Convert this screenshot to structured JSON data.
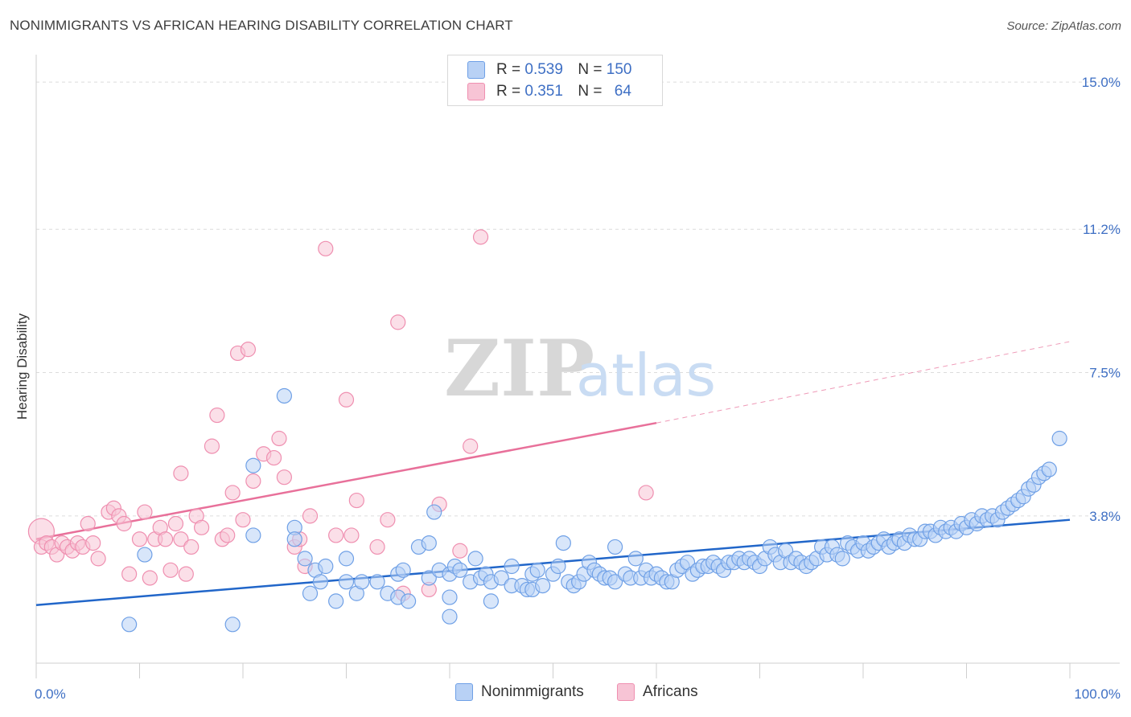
{
  "title": "NONIMMIGRANTS VS AFRICAN HEARING DISABILITY CORRELATION CHART",
  "source": "Source: ZipAtlas.com",
  "watermark": {
    "zip": "ZIP",
    "atlas": "atlas"
  },
  "colors": {
    "blue": "#6fa0e6",
    "blue_fill": "#b8d1f5",
    "blue_line": "#2166c9",
    "pink": "#ef8fb0",
    "pink_fill": "#f7c4d5",
    "pink_line": "#e8709a"
  },
  "legend": {
    "rows": [
      {
        "r_label": "R =",
        "r_value": "0.539",
        "n_label": "N =",
        "n_value": "150"
      },
      {
        "r_label": "R =",
        "r_value": "0.351",
        "n_label": "N =",
        "n_value": "64"
      }
    ]
  },
  "bottom_legend": {
    "nonimmigrants": "Nonimmigrants",
    "africans": "Africans"
  },
  "chart_data": {
    "type": "scatter",
    "xlabel": "",
    "ylabel": "Hearing Disability",
    "xlim": [
      0,
      100
    ],
    "ylim": [
      0,
      15.5
    ],
    "x_tick_labels": [
      "0.0%",
      "100.0%"
    ],
    "y_ticks": [
      3.8,
      7.5,
      11.2,
      15.0
    ],
    "y_tick_labels": [
      "3.8%",
      "7.5%",
      "11.2%",
      "15.0%"
    ],
    "grid": true,
    "legend_placement": "top-center",
    "series": [
      {
        "name": "Nonimmigrants",
        "trend": {
          "x0": 0,
          "y0": 1.5,
          "x1": 100,
          "y1": 3.7
        },
        "points": [
          [
            9,
            1.0
          ],
          [
            10.5,
            2.8
          ],
          [
            19,
            1.0
          ],
          [
            21,
            3.3
          ],
          [
            21,
            5.1
          ],
          [
            24,
            6.9
          ],
          [
            25,
            3.5
          ],
          [
            25,
            3.2
          ],
          [
            26,
            2.7
          ],
          [
            26.5,
            1.8
          ],
          [
            27,
            2.4
          ],
          [
            27.5,
            2.1
          ],
          [
            28,
            2.5
          ],
          [
            29,
            1.6
          ],
          [
            30,
            2.1
          ],
          [
            30,
            2.7
          ],
          [
            31,
            1.8
          ],
          [
            31.5,
            2.1
          ],
          [
            33,
            2.1
          ],
          [
            34,
            1.8
          ],
          [
            35,
            1.7
          ],
          [
            35,
            2.3
          ],
          [
            35.5,
            2.4
          ],
          [
            36,
            1.6
          ],
          [
            37,
            3.0
          ],
          [
            38,
            2.2
          ],
          [
            38,
            3.1
          ],
          [
            38.5,
            3.9
          ],
          [
            39,
            2.4
          ],
          [
            40,
            2.3
          ],
          [
            40,
            1.7
          ],
          [
            40,
            1.2
          ],
          [
            40.5,
            2.5
          ],
          [
            41,
            2.4
          ],
          [
            42,
            2.1
          ],
          [
            42.5,
            2.7
          ],
          [
            43,
            2.2
          ],
          [
            43.5,
            2.3
          ],
          [
            44,
            2.1
          ],
          [
            44,
            1.6
          ],
          [
            45,
            2.2
          ],
          [
            46,
            2.0
          ],
          [
            46,
            2.5
          ],
          [
            47,
            2.0
          ],
          [
            47.5,
            1.9
          ],
          [
            48,
            2.3
          ],
          [
            48,
            1.9
          ],
          [
            48.5,
            2.4
          ],
          [
            49,
            2.0
          ],
          [
            50,
            2.3
          ],
          [
            50.5,
            2.5
          ],
          [
            51,
            3.1
          ],
          [
            51.5,
            2.1
          ],
          [
            52,
            2.0
          ],
          [
            52.5,
            2.1
          ],
          [
            53,
            2.3
          ],
          [
            53.5,
            2.6
          ],
          [
            54,
            2.4
          ],
          [
            54.5,
            2.3
          ],
          [
            55,
            2.2
          ],
          [
            55.5,
            2.2
          ],
          [
            56,
            2.1
          ],
          [
            56,
            3.0
          ],
          [
            57,
            2.3
          ],
          [
            57.5,
            2.2
          ],
          [
            58,
            2.7
          ],
          [
            58.5,
            2.2
          ],
          [
            59,
            2.4
          ],
          [
            59.5,
            2.2
          ],
          [
            60,
            2.3
          ],
          [
            60.5,
            2.2
          ],
          [
            61,
            2.1
          ],
          [
            61.5,
            2.1
          ],
          [
            62,
            2.4
          ],
          [
            62.5,
            2.5
          ],
          [
            63,
            2.6
          ],
          [
            63.5,
            2.3
          ],
          [
            64,
            2.4
          ],
          [
            64.5,
            2.5
          ],
          [
            65,
            2.5
          ],
          [
            65.5,
            2.6
          ],
          [
            66,
            2.5
          ],
          [
            66.5,
            2.4
          ],
          [
            67,
            2.6
          ],
          [
            67.5,
            2.6
          ],
          [
            68,
            2.7
          ],
          [
            68.5,
            2.6
          ],
          [
            69,
            2.7
          ],
          [
            69.5,
            2.6
          ],
          [
            70,
            2.5
          ],
          [
            70.5,
            2.7
          ],
          [
            71,
            3.0
          ],
          [
            71.5,
            2.8
          ],
          [
            72,
            2.6
          ],
          [
            72.5,
            2.9
          ],
          [
            73,
            2.6
          ],
          [
            73.5,
            2.7
          ],
          [
            74,
            2.6
          ],
          [
            74.5,
            2.5
          ],
          [
            75,
            2.6
          ],
          [
            75.5,
            2.7
          ],
          [
            76,
            3.0
          ],
          [
            76.5,
            2.8
          ],
          [
            77,
            3.0
          ],
          [
            77.5,
            2.8
          ],
          [
            78,
            2.7
          ],
          [
            78.5,
            3.1
          ],
          [
            79,
            3.0
          ],
          [
            79.5,
            2.9
          ],
          [
            80,
            3.1
          ],
          [
            80.5,
            2.9
          ],
          [
            81,
            3.0
          ],
          [
            81.5,
            3.1
          ],
          [
            82,
            3.2
          ],
          [
            82.5,
            3.0
          ],
          [
            83,
            3.1
          ],
          [
            83.5,
            3.2
          ],
          [
            84,
            3.1
          ],
          [
            84.5,
            3.3
          ],
          [
            85,
            3.2
          ],
          [
            85.5,
            3.2
          ],
          [
            86,
            3.4
          ],
          [
            86.5,
            3.4
          ],
          [
            87,
            3.3
          ],
          [
            87.5,
            3.5
          ],
          [
            88,
            3.4
          ],
          [
            88.5,
            3.5
          ],
          [
            89,
            3.4
          ],
          [
            89.5,
            3.6
          ],
          [
            90,
            3.5
          ],
          [
            90.5,
            3.7
          ],
          [
            91,
            3.6
          ],
          [
            91.5,
            3.8
          ],
          [
            92,
            3.7
          ],
          [
            92.5,
            3.8
          ],
          [
            93,
            3.7
          ],
          [
            93.5,
            3.9
          ],
          [
            94,
            4.0
          ],
          [
            94.5,
            4.1
          ],
          [
            95,
            4.2
          ],
          [
            95.5,
            4.3
          ],
          [
            96,
            4.5
          ],
          [
            96.5,
            4.6
          ],
          [
            97,
            4.8
          ],
          [
            97.5,
            4.9
          ],
          [
            98,
            5.0
          ],
          [
            99,
            5.8
          ]
        ]
      },
      {
        "name": "Africans",
        "trend": {
          "x0": 0,
          "y0": 3.2,
          "x1": 60,
          "y1": 6.2,
          "dash_x1": 100,
          "dash_y1": 8.3
        },
        "points": [
          [
            0.5,
            3.4
          ],
          [
            0.5,
            3.0
          ],
          [
            1,
            3.1
          ],
          [
            1.5,
            3.0
          ],
          [
            2,
            2.8
          ],
          [
            2.5,
            3.1
          ],
          [
            3,
            3.0
          ],
          [
            3.5,
            2.9
          ],
          [
            4,
            3.1
          ],
          [
            4.5,
            3.0
          ],
          [
            5,
            3.6
          ],
          [
            5.5,
            3.1
          ],
          [
            6,
            2.7
          ],
          [
            7,
            3.9
          ],
          [
            7.5,
            4.0
          ],
          [
            8,
            3.8
          ],
          [
            8.5,
            3.6
          ],
          [
            9,
            2.3
          ],
          [
            10,
            3.2
          ],
          [
            10.5,
            3.9
          ],
          [
            11,
            2.2
          ],
          [
            11.5,
            3.2
          ],
          [
            12,
            3.5
          ],
          [
            12.5,
            3.2
          ],
          [
            13,
            2.4
          ],
          [
            13.5,
            3.6
          ],
          [
            14,
            3.2
          ],
          [
            14,
            4.9
          ],
          [
            14.5,
            2.3
          ],
          [
            15,
            3.0
          ],
          [
            15.5,
            3.8
          ],
          [
            16,
            3.5
          ],
          [
            17,
            5.6
          ],
          [
            17.5,
            6.4
          ],
          [
            18,
            3.2
          ],
          [
            18.5,
            3.3
          ],
          [
            19,
            4.4
          ],
          [
            19.5,
            8.0
          ],
          [
            20,
            3.7
          ],
          [
            20.5,
            8.1
          ],
          [
            21,
            4.7
          ],
          [
            22,
            5.4
          ],
          [
            23,
            5.3
          ],
          [
            23.5,
            5.8
          ],
          [
            24,
            4.8
          ],
          [
            25,
            3.0
          ],
          [
            25.5,
            3.2
          ],
          [
            26,
            2.5
          ],
          [
            26.5,
            3.8
          ],
          [
            28,
            10.7
          ],
          [
            29,
            3.3
          ],
          [
            30,
            6.8
          ],
          [
            30.5,
            3.3
          ],
          [
            31,
            4.2
          ],
          [
            33,
            3.0
          ],
          [
            34,
            3.7
          ],
          [
            35,
            8.8
          ],
          [
            35.5,
            1.8
          ],
          [
            38,
            1.9
          ],
          [
            39,
            4.1
          ],
          [
            41,
            2.9
          ],
          [
            42,
            5.6
          ],
          [
            43,
            11.0
          ],
          [
            59,
            4.4
          ]
        ]
      }
    ]
  }
}
